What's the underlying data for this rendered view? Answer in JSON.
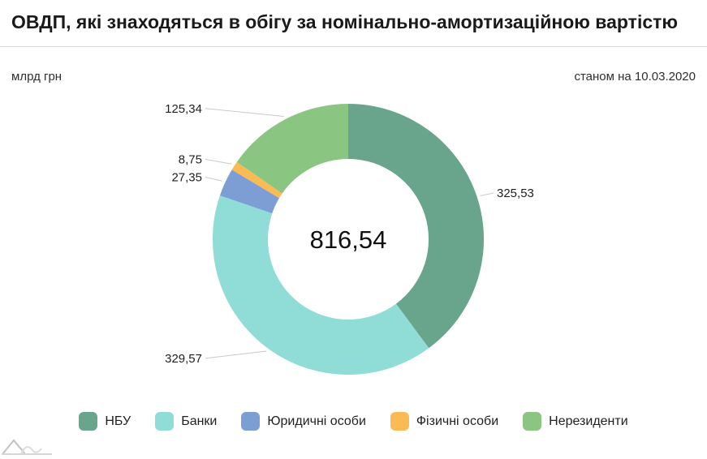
{
  "header": {
    "title": "ОВДП, які знаходяться в обігу за номінально-амортизаційною вартістю",
    "unit_label": "млрд грн",
    "date_label": "станом на 10.03.2020"
  },
  "chart_data": {
    "type": "pie",
    "subtype": "donut",
    "title": "ОВДП, які знаходяться в обігу за номінально-амортизаційною вартістю",
    "unit": "млрд грн",
    "as_of": "10.03.2020",
    "center_total_display": "816,54",
    "center_total_value": 816.54,
    "start_angle_deg": 0,
    "direction": "clockwise",
    "inner_radius_ratio": 0.59,
    "legend_position": "bottom",
    "slices": [
      {
        "label": "НБУ",
        "value": 325.53,
        "display": "325,53",
        "color": "#69a58c"
      },
      {
        "label": "Банки",
        "value": 329.57,
        "display": "329,57",
        "color": "#90dcd7"
      },
      {
        "label": "Юридичні особи",
        "value": 27.35,
        "display": "27,35",
        "color": "#7d9ed4"
      },
      {
        "label": "Фізичні особи",
        "value": 8.75,
        "display": "8,75",
        "color": "#fbbb54"
      },
      {
        "label": "Нерезиденти",
        "value": 125.34,
        "display": "125,34",
        "color": "#8ac581"
      }
    ]
  },
  "watermark": {
    "name": "amcharts-logo"
  }
}
